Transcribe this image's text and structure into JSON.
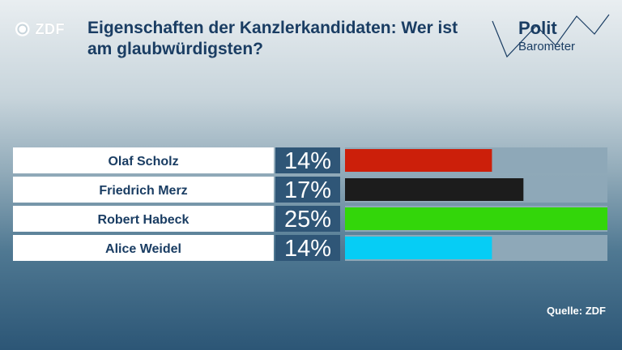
{
  "header": {
    "logo_text": "ZDF",
    "title": "Eigenschaften der Kanzlerkandidaten: Wer ist am glaubwürdigsten?",
    "brand_line1": "Polit",
    "brand_line2": "Barometer"
  },
  "footer": {
    "source": "Quelle: ZDF"
  },
  "chart_data": {
    "type": "bar",
    "orientation": "horizontal",
    "categories": [
      "Olaf Scholz",
      "Friedrich Merz",
      "Robert Habeck",
      "Alice Weidel"
    ],
    "values": [
      14,
      17,
      25,
      14
    ],
    "value_labels": [
      "14%",
      "17%",
      "25%",
      "14%"
    ],
    "colors": [
      "#cc1f0a",
      "#1c1c1c",
      "#33d60a",
      "#06cdf5"
    ],
    "track_color": "#8ea8b8",
    "xlim": [
      0,
      25
    ],
    "title": "Eigenschaften der Kanzlerkandidaten: Wer ist am glaubwürdigsten?",
    "grid": false,
    "legend": "none"
  }
}
